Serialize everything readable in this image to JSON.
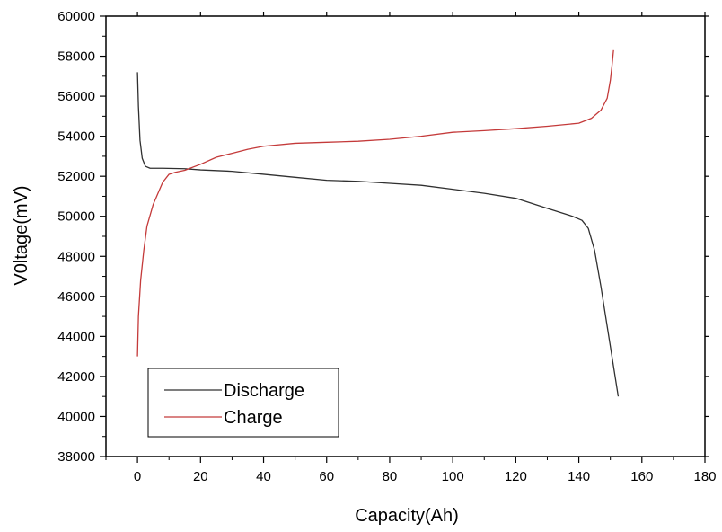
{
  "chart_data": {
    "type": "line",
    "xlabel": "Capacity(Ah)",
    "ylabel": "V0ltage(mV)",
    "xlim": [
      -10,
      180
    ],
    "ylim": [
      38000,
      60000
    ],
    "xticks": [
      0,
      20,
      40,
      60,
      80,
      100,
      120,
      140,
      160,
      180
    ],
    "yticks": [
      38000,
      40000,
      42000,
      44000,
      46000,
      48000,
      50000,
      52000,
      54000,
      56000,
      58000,
      60000
    ],
    "legend_position": "bottom-left",
    "series": [
      {
        "name": "Discharge",
        "color": "#303030",
        "x": [
          0,
          0.3,
          0.8,
          1.5,
          2.5,
          4,
          8,
          15,
          20,
          30,
          40,
          50,
          60,
          70,
          80,
          90,
          100,
          110,
          120,
          130,
          138,
          141,
          143,
          145,
          147,
          149,
          151,
          152.5
        ],
        "y": [
          57200,
          55500,
          53800,
          52900,
          52500,
          52400,
          52400,
          52380,
          52320,
          52250,
          52100,
          51950,
          51800,
          51750,
          51650,
          51550,
          51350,
          51150,
          50900,
          50400,
          50000,
          49800,
          49400,
          48300,
          46500,
          44500,
          42500,
          41000
        ]
      },
      {
        "name": "Charge",
        "color": "#c43a3a",
        "x": [
          0,
          0.3,
          1,
          2,
          3,
          5,
          8,
          10,
          12,
          15,
          20,
          25,
          30,
          35,
          40,
          50,
          60,
          70,
          80,
          90,
          100,
          110,
          120,
          130,
          140,
          144,
          147,
          149,
          150,
          150.5,
          151
        ],
        "y": [
          43000,
          45000,
          46800,
          48300,
          49500,
          50600,
          51700,
          52100,
          52200,
          52300,
          52600,
          52950,
          53150,
          53350,
          53500,
          53650,
          53700,
          53750,
          53850,
          54000,
          54200,
          54280,
          54380,
          54500,
          54650,
          54900,
          55300,
          55900,
          56800,
          57500,
          58300
        ]
      }
    ]
  }
}
